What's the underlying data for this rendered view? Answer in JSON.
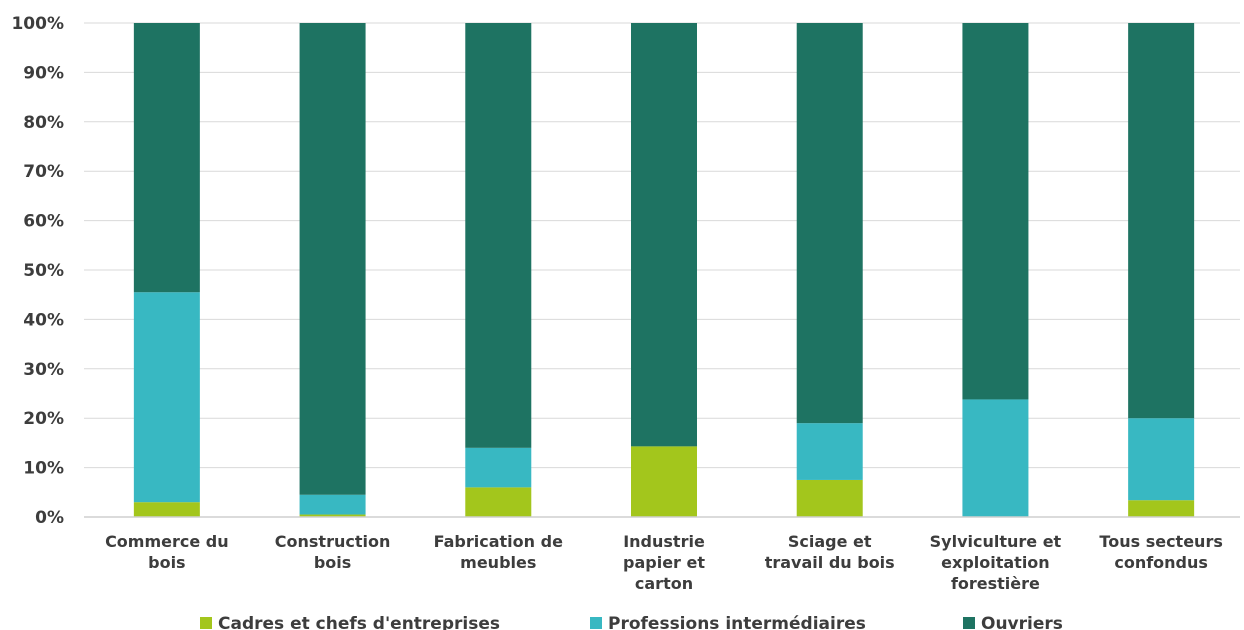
{
  "chart_data": {
    "type": "bar",
    "stacked": true,
    "percent_stacked": true,
    "categories": [
      [
        "Commerce du",
        "bois"
      ],
      [
        "Construction",
        "bois"
      ],
      [
        "Fabrication de",
        "meubles"
      ],
      [
        "Industrie",
        "papier et",
        "carton"
      ],
      [
        "Sciage et",
        "travail du bois"
      ],
      [
        "Sylviculture et",
        "exploitation",
        "forestière"
      ],
      [
        "Tous secteurs",
        "confondus"
      ]
    ],
    "series": [
      {
        "name": "Cadres et chefs d'entreprises",
        "color": "#a3c61c",
        "values": [
          3,
          0.5,
          6,
          14.3,
          7.5,
          0,
          3.4
        ]
      },
      {
        "name": "Professions intermédiaires",
        "color": "#38b8c2",
        "values": [
          42.5,
          4,
          8,
          0,
          11.5,
          23.8,
          16.6
        ]
      },
      {
        "name": "Ouvriers",
        "color": "#1e7362",
        "values": [
          54.5,
          95.5,
          86,
          85.7,
          81,
          76.2,
          80
        ]
      }
    ],
    "yticks": [
      "0%",
      "10%",
      "20%",
      "30%",
      "40%",
      "50%",
      "60%",
      "70%",
      "80%",
      "90%",
      "100%"
    ],
    "ylim": [
      0,
      100
    ],
    "grid": true,
    "legend_position": "bottom"
  }
}
